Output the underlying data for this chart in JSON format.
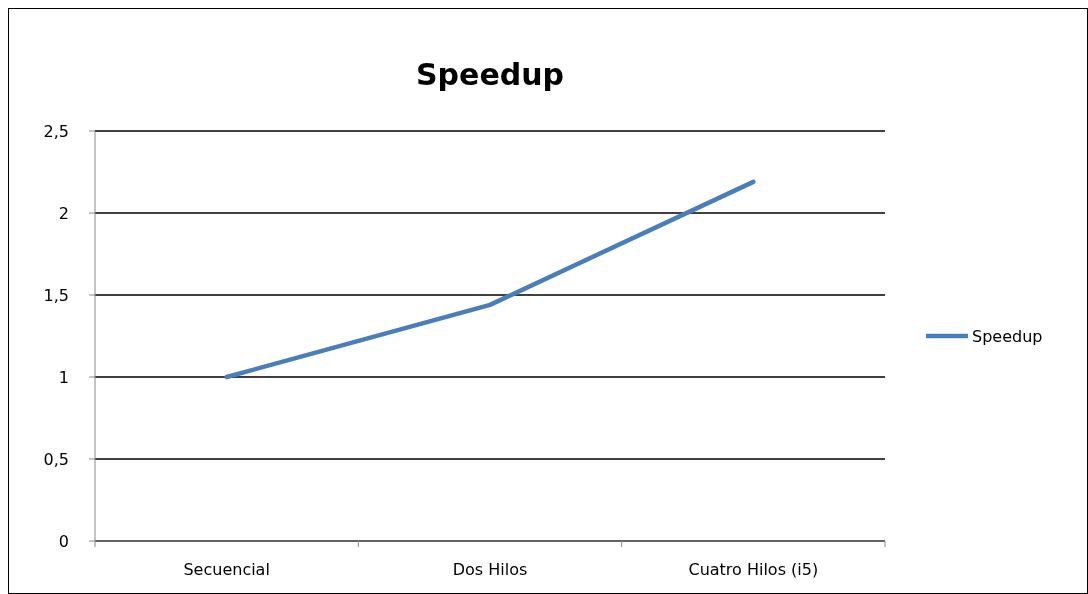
{
  "chart_data": {
    "type": "line",
    "title": "Speedup",
    "categories": [
      "Secuencial",
      "Dos Hilos",
      "Cuatro Hilos (i5)"
    ],
    "series": [
      {
        "name": "Speedup",
        "color": "#4a7ebb",
        "values": [
          1.0,
          1.44,
          2.19
        ]
      }
    ],
    "ylim": [
      0,
      2.5
    ],
    "yticks": [
      0,
      {
        "value": 0.5,
        "label": "0,5"
      },
      1,
      {
        "value": 1.5,
        "label": "1,5"
      },
      2,
      {
        "value": 2.5,
        "label": "2,5"
      }
    ],
    "grid": "y",
    "legend": "right",
    "marker": "none",
    "line_style": "solid"
  }
}
